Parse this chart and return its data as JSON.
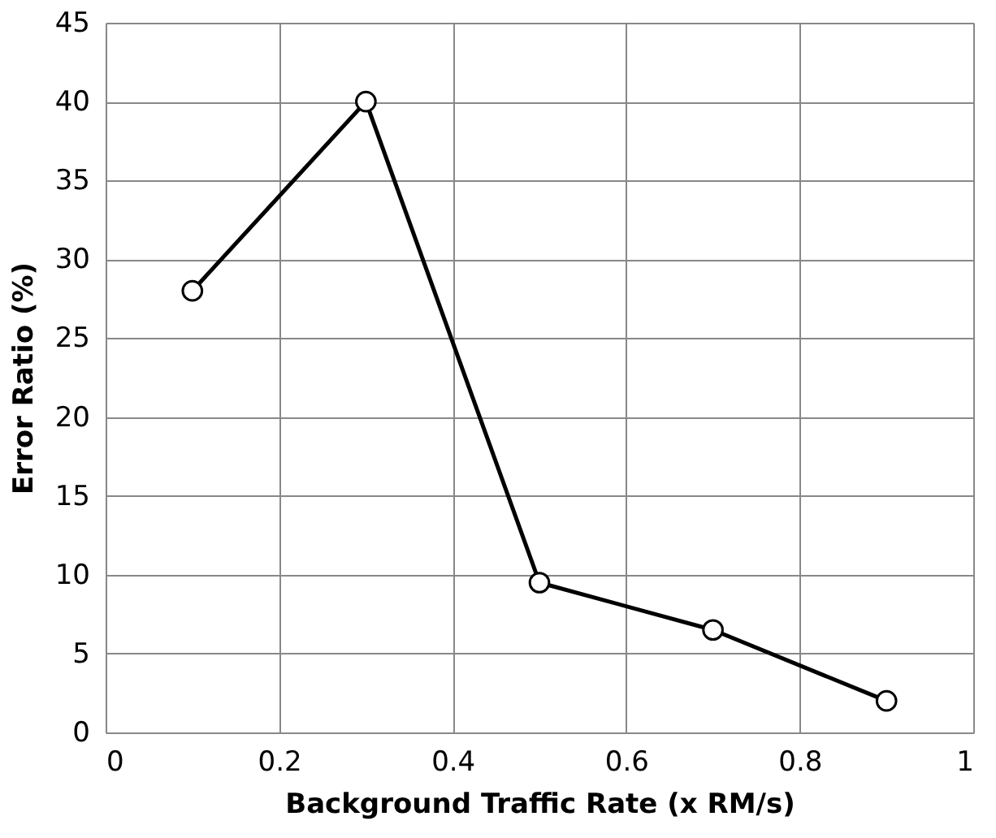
{
  "chart_data": {
    "type": "line",
    "xlabel": "Background Traffic Rate (x RM/s)",
    "ylabel": "Error Ratio (%)",
    "x": [
      0.1,
      0.3,
      0.5,
      0.7,
      0.9
    ],
    "series": [
      {
        "color": "#000000",
        "values": [
          28,
          40,
          9.5,
          6.5,
          2
        ]
      }
    ],
    "xlim": [
      0,
      1
    ],
    "xticks": [
      0,
      0.2,
      0.4,
      0.6,
      0.8,
      1
    ],
    "ylim": [
      0,
      45
    ],
    "yticks": [
      0,
      5,
      10,
      15,
      20,
      25,
      30,
      35,
      40,
      45
    ],
    "grid": true,
    "marker": "circle",
    "line_style": "solid"
  }
}
